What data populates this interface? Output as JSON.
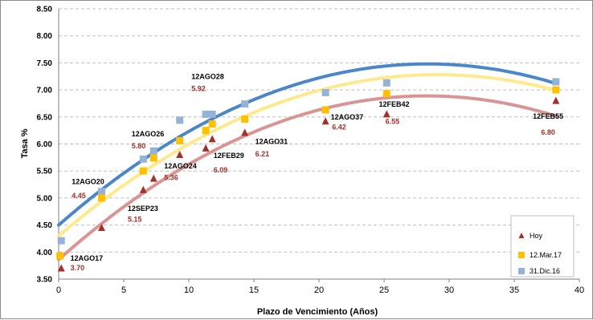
{
  "chart_data": {
    "type": "scatter",
    "title": "",
    "xlabel": "Plazo de Vencimiento  (Años)",
    "ylabel": "Tasa %",
    "xlim": [
      0,
      40
    ],
    "ylim": [
      3.5,
      8.5
    ],
    "x_ticks": [
      0,
      5,
      10,
      15,
      20,
      25,
      30,
      35,
      40
    ],
    "y_ticks": [
      "3.50",
      "4.00",
      "4.50",
      "5.00",
      "5.50",
      "6.00",
      "6.50",
      "7.00",
      "7.50",
      "8.00",
      "8.50"
    ],
    "grid": "horizontal dashed",
    "legend_position": "bottom-right",
    "series": [
      {
        "name": "Hoy",
        "marker": "triangle",
        "color": "#a2302b",
        "trend_color": "#d99493",
        "points": [
          [
            0.2,
            3.7
          ],
          [
            3.3,
            4.45
          ],
          [
            6.5,
            5.15
          ],
          [
            7.3,
            5.36
          ],
          [
            9.3,
            5.8
          ],
          [
            11.3,
            5.92
          ],
          [
            11.8,
            6.09
          ],
          [
            14.3,
            6.21
          ],
          [
            20.5,
            6.42
          ],
          [
            25.2,
            6.55
          ],
          [
            38.2,
            6.8
          ]
        ],
        "trend_coeffs": [
          3.86,
          0.2143,
          -0.00379
        ]
      },
      {
        "name": "12.Mar.17",
        "marker": "square",
        "color": "#ffc000",
        "trend_color": "#ffe98c",
        "points": [
          [
            0.1,
            3.93
          ],
          [
            3.3,
            5.0
          ],
          [
            6.5,
            5.5
          ],
          [
            7.3,
            5.74
          ],
          [
            9.3,
            6.06
          ],
          [
            11.3,
            6.25
          ],
          [
            11.8,
            6.37
          ],
          [
            14.3,
            6.46
          ],
          [
            20.5,
            6.63
          ],
          [
            25.2,
            6.93
          ],
          [
            38.2,
            7.0
          ]
        ],
        "trend_coeffs": [
          4.3,
          0.2049,
          -0.00352
        ]
      },
      {
        "name": "31.Dic.16",
        "marker": "square",
        "color": "#95b3d7",
        "trend_color": "#4a86c8",
        "points": [
          [
            0.2,
            4.21
          ],
          [
            3.3,
            5.12
          ],
          [
            6.5,
            5.72
          ],
          [
            7.3,
            5.87
          ],
          [
            9.3,
            6.44
          ],
          [
            11.3,
            6.55
          ],
          [
            11.8,
            6.55
          ],
          [
            14.3,
            6.74
          ],
          [
            20.5,
            6.95
          ],
          [
            25.2,
            7.13
          ],
          [
            38.2,
            7.15
          ]
        ],
        "trend_coeffs": [
          4.5,
          0.2103,
          -0.00371
        ]
      }
    ],
    "annotations": [
      {
        "name": "12AGO17",
        "value": "3.70",
        "x": 0.2,
        "y": 3.7
      },
      {
        "name": "12AGO20",
        "value": "4.45",
        "x": 3.3,
        "y": 4.45
      },
      {
        "name": "12SEP23",
        "value": "5.15",
        "x": 6.5,
        "y": 5.15
      },
      {
        "name": "12AGO24",
        "value": "5.36",
        "x": 7.3,
        "y": 5.36
      },
      {
        "name": "12AGO26",
        "value": "5.80",
        "x": 9.3,
        "y": 5.8
      },
      {
        "name": "12AGO28",
        "value": "5.92",
        "x": 11.3,
        "y": 5.92
      },
      {
        "name": "12FEB29",
        "value": "6.09",
        "x": 11.8,
        "y": 6.09
      },
      {
        "name": "12AGO31",
        "value": "6.21",
        "x": 14.3,
        "y": 6.21
      },
      {
        "name": "12AGO37",
        "value": "6.42",
        "x": 20.5,
        "y": 6.42
      },
      {
        "name": "12FEB42",
        "value": "6.55",
        "x": 25.2,
        "y": 6.55
      },
      {
        "name": "12FEB55",
        "value": "6.80",
        "x": 38.2,
        "y": 6.8
      }
    ],
    "legend": [
      "Hoy",
      "12.Mar.17",
      "31.Dic.16"
    ]
  }
}
